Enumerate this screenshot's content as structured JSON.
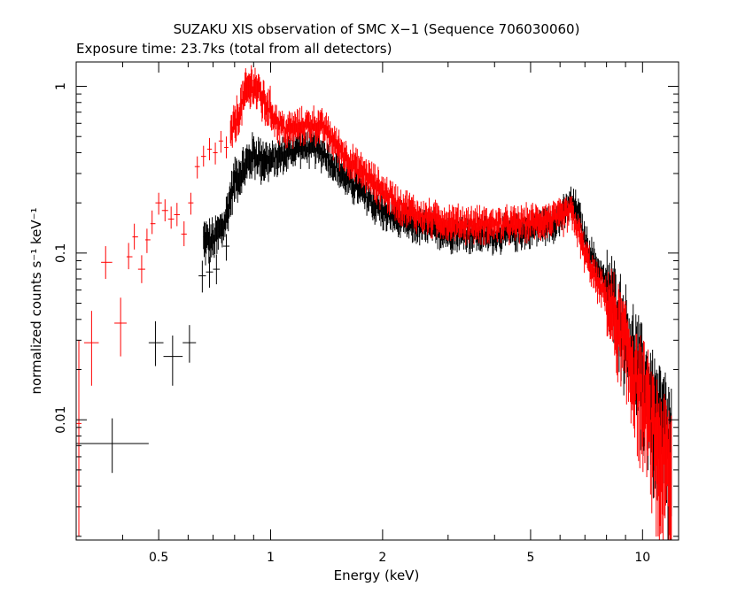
{
  "chart_data": {
    "type": "scatter",
    "title": "SUZAKU XIS observation of SMC X−1 (Sequence 706030060)",
    "subtitle": "Exposure time: 23.7ks (total from all detectors)",
    "xlabel": "Energy (keV)",
    "ylabel": "normalized counts s⁻¹ keV⁻¹",
    "xscale": "log",
    "yscale": "log",
    "xlim": [
      0.3,
      12.5
    ],
    "ylim": [
      0.0019,
      1.4
    ],
    "x_ticks": [
      {
        "value": 0.5,
        "label": "0.5"
      },
      {
        "value": 1,
        "label": "1"
      },
      {
        "value": 2,
        "label": "2"
      },
      {
        "value": 5,
        "label": "5"
      },
      {
        "value": 10,
        "label": "10"
      }
    ],
    "y_ticks": [
      {
        "value": 0.01,
        "label": "0.01"
      },
      {
        "value": 0.1,
        "label": "0.1"
      },
      {
        "value": 1,
        "label": "1"
      }
    ],
    "grid": false,
    "legend": "none",
    "series": [
      {
        "color": "#000000",
        "points": [
          {
            "x": 0.375,
            "xlo": 0.3,
            "xhi": 0.47,
            "y": 0.0072,
            "ylo": 0.0048,
            "yhi": 0.0102
          },
          {
            "x": 0.49,
            "xlo": 0.47,
            "xhi": 0.515,
            "y": 0.029,
            "ylo": 0.021,
            "yhi": 0.039
          },
          {
            "x": 0.545,
            "xlo": 0.515,
            "xhi": 0.58,
            "y": 0.024,
            "ylo": 0.016,
            "yhi": 0.032
          },
          {
            "x": 0.605,
            "xlo": 0.58,
            "xhi": 0.63,
            "y": 0.029,
            "ylo": 0.022,
            "yhi": 0.037
          },
          {
            "x": 0.655,
            "xlo": 0.64,
            "xhi": 0.67,
            "y": 0.073,
            "ylo": 0.058,
            "yhi": 0.09
          },
          {
            "x": 0.685,
            "xlo": 0.67,
            "xhi": 0.7,
            "y": 0.077,
            "ylo": 0.062,
            "yhi": 0.095
          },
          {
            "x": 0.715,
            "xlo": 0.7,
            "xhi": 0.73,
            "y": 0.08,
            "ylo": 0.065,
            "yhi": 0.098
          },
          {
            "x": 0.76,
            "xlo": 0.745,
            "xhi": 0.775,
            "y": 0.11,
            "ylo": 0.09,
            "yhi": 0.13
          }
        ],
        "trace": [
          [
            0.66,
            0.12
          ],
          [
            0.7,
            0.12
          ],
          [
            0.75,
            0.15
          ],
          [
            0.8,
            0.28
          ],
          [
            0.85,
            0.33
          ],
          [
            0.9,
            0.4
          ],
          [
            0.95,
            0.37
          ],
          [
            1.0,
            0.36
          ],
          [
            1.1,
            0.4
          ],
          [
            1.2,
            0.44
          ],
          [
            1.3,
            0.43
          ],
          [
            1.4,
            0.4
          ],
          [
            1.5,
            0.33
          ],
          [
            1.6,
            0.28
          ],
          [
            1.7,
            0.25
          ],
          [
            1.8,
            0.22
          ],
          [
            2.0,
            0.18
          ],
          [
            2.2,
            0.16
          ],
          [
            2.5,
            0.145
          ],
          [
            3.0,
            0.135
          ],
          [
            3.5,
            0.13
          ],
          [
            4.0,
            0.13
          ],
          [
            4.5,
            0.135
          ],
          [
            5.0,
            0.14
          ],
          [
            5.5,
            0.15
          ],
          [
            6.0,
            0.16
          ],
          [
            6.4,
            0.2
          ],
          [
            6.7,
            0.18
          ],
          [
            7.0,
            0.12
          ],
          [
            7.5,
            0.085
          ],
          [
            8.0,
            0.065
          ],
          [
            8.5,
            0.05
          ],
          [
            9.0,
            0.035
          ],
          [
            9.5,
            0.025
          ],
          [
            10.0,
            0.018
          ],
          [
            10.5,
            0.014
          ],
          [
            11.0,
            0.011
          ],
          [
            12.0,
            0.007
          ]
        ]
      },
      {
        "color": "#ff0000",
        "points": [
          {
            "x": 0.305,
            "xlo": 0.3,
            "xhi": 0.31,
            "y": 0.0095,
            "ylo": 0.002,
            "yhi": 0.03
          },
          {
            "x": 0.33,
            "xlo": 0.315,
            "xhi": 0.345,
            "y": 0.029,
            "ylo": 0.016,
            "yhi": 0.045
          },
          {
            "x": 0.36,
            "xlo": 0.35,
            "xhi": 0.375,
            "y": 0.088,
            "ylo": 0.07,
            "yhi": 0.11
          },
          {
            "x": 0.395,
            "xlo": 0.38,
            "xhi": 0.41,
            "y": 0.038,
            "ylo": 0.024,
            "yhi": 0.054
          },
          {
            "x": 0.415,
            "xlo": 0.41,
            "xhi": 0.425,
            "y": 0.095,
            "ylo": 0.08,
            "yhi": 0.115
          },
          {
            "x": 0.43,
            "xlo": 0.425,
            "xhi": 0.44,
            "y": 0.125,
            "ylo": 0.105,
            "yhi": 0.15
          },
          {
            "x": 0.45,
            "xlo": 0.44,
            "xhi": 0.46,
            "y": 0.08,
            "ylo": 0.066,
            "yhi": 0.097
          },
          {
            "x": 0.465,
            "xlo": 0.46,
            "xhi": 0.475,
            "y": 0.12,
            "ylo": 0.1,
            "yhi": 0.14
          },
          {
            "x": 0.48,
            "xlo": 0.475,
            "xhi": 0.49,
            "y": 0.15,
            "ylo": 0.13,
            "yhi": 0.18
          },
          {
            "x": 0.5,
            "xlo": 0.49,
            "xhi": 0.51,
            "y": 0.2,
            "ylo": 0.17,
            "yhi": 0.23
          },
          {
            "x": 0.52,
            "xlo": 0.51,
            "xhi": 0.53,
            "y": 0.18,
            "ylo": 0.155,
            "yhi": 0.21
          },
          {
            "x": 0.54,
            "xlo": 0.53,
            "xhi": 0.55,
            "y": 0.16,
            "ylo": 0.14,
            "yhi": 0.19
          },
          {
            "x": 0.56,
            "xlo": 0.55,
            "xhi": 0.57,
            "y": 0.17,
            "ylo": 0.145,
            "yhi": 0.2
          },
          {
            "x": 0.585,
            "xlo": 0.575,
            "xhi": 0.595,
            "y": 0.13,
            "ylo": 0.11,
            "yhi": 0.155
          },
          {
            "x": 0.61,
            "xlo": 0.6,
            "xhi": 0.62,
            "y": 0.2,
            "ylo": 0.17,
            "yhi": 0.23
          },
          {
            "x": 0.635,
            "xlo": 0.625,
            "xhi": 0.645,
            "y": 0.33,
            "ylo": 0.28,
            "yhi": 0.38
          },
          {
            "x": 0.66,
            "xlo": 0.65,
            "xhi": 0.67,
            "y": 0.38,
            "ylo": 0.33,
            "yhi": 0.44
          },
          {
            "x": 0.685,
            "xlo": 0.675,
            "xhi": 0.695,
            "y": 0.42,
            "ylo": 0.36,
            "yhi": 0.49
          },
          {
            "x": 0.71,
            "xlo": 0.7,
            "xhi": 0.72,
            "y": 0.4,
            "ylo": 0.34,
            "yhi": 0.46
          },
          {
            "x": 0.735,
            "xlo": 0.725,
            "xhi": 0.745,
            "y": 0.47,
            "ylo": 0.4,
            "yhi": 0.54
          },
          {
            "x": 0.76,
            "xlo": 0.75,
            "xhi": 0.77,
            "y": 0.43,
            "ylo": 0.37,
            "yhi": 0.5
          }
        ],
        "trace": [
          [
            0.78,
            0.5
          ],
          [
            0.82,
            0.7
          ],
          [
            0.86,
            0.95
          ],
          [
            0.9,
            1.05
          ],
          [
            0.95,
            0.85
          ],
          [
            1.0,
            0.72
          ],
          [
            1.05,
            0.6
          ],
          [
            1.1,
            0.55
          ],
          [
            1.2,
            0.58
          ],
          [
            1.3,
            0.6
          ],
          [
            1.4,
            0.56
          ],
          [
            1.5,
            0.45
          ],
          [
            1.6,
            0.38
          ],
          [
            1.7,
            0.33
          ],
          [
            1.8,
            0.3
          ],
          [
            2.0,
            0.24
          ],
          [
            2.2,
            0.2
          ],
          [
            2.5,
            0.17
          ],
          [
            3.0,
            0.155
          ],
          [
            3.5,
            0.15
          ],
          [
            4.0,
            0.15
          ],
          [
            4.5,
            0.15
          ],
          [
            5.0,
            0.155
          ],
          [
            5.5,
            0.16
          ],
          [
            6.0,
            0.165
          ],
          [
            6.4,
            0.18
          ],
          [
            6.7,
            0.14
          ],
          [
            7.0,
            0.1
          ],
          [
            7.5,
            0.07
          ],
          [
            8.0,
            0.055
          ],
          [
            8.5,
            0.04
          ],
          [
            9.0,
            0.03
          ],
          [
            9.5,
            0.02
          ],
          [
            10.0,
            0.015
          ],
          [
            10.5,
            0.011
          ],
          [
            11.0,
            0.008
          ],
          [
            12.0,
            0.005
          ]
        ]
      }
    ]
  }
}
